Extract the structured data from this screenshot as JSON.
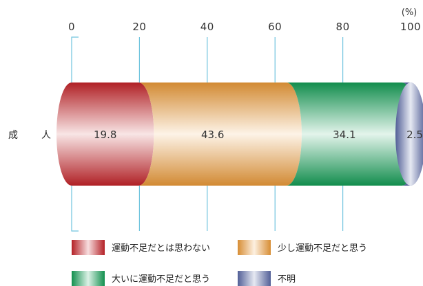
{
  "chart_data": {
    "type": "bar",
    "orientation": "horizontal-stacked-percent",
    "unit": "(%)",
    "xlim": [
      0,
      100
    ],
    "ticks": [
      "0",
      "20",
      "40",
      "60",
      "80",
      "100"
    ],
    "categories": [
      "成　人"
    ],
    "series": [
      {
        "name": "運動不足だとは思わない",
        "values": [
          19.8
        ],
        "label": "19.8",
        "color": "#c8242a"
      },
      {
        "name": "少し運動不足だと思う",
        "values": [
          43.6
        ],
        "label": "43.6",
        "color": "#ef9d3a"
      },
      {
        "name": "大いに運動不足だと思う",
        "values": [
          34.1
        ],
        "label": "34.1",
        "color": "#14a057"
      },
      {
        "name": "不明",
        "values": [
          2.5
        ],
        "label": "2.5",
        "color": "#5b6aa8"
      }
    ],
    "legend_position": "bottom",
    "grid": true
  }
}
